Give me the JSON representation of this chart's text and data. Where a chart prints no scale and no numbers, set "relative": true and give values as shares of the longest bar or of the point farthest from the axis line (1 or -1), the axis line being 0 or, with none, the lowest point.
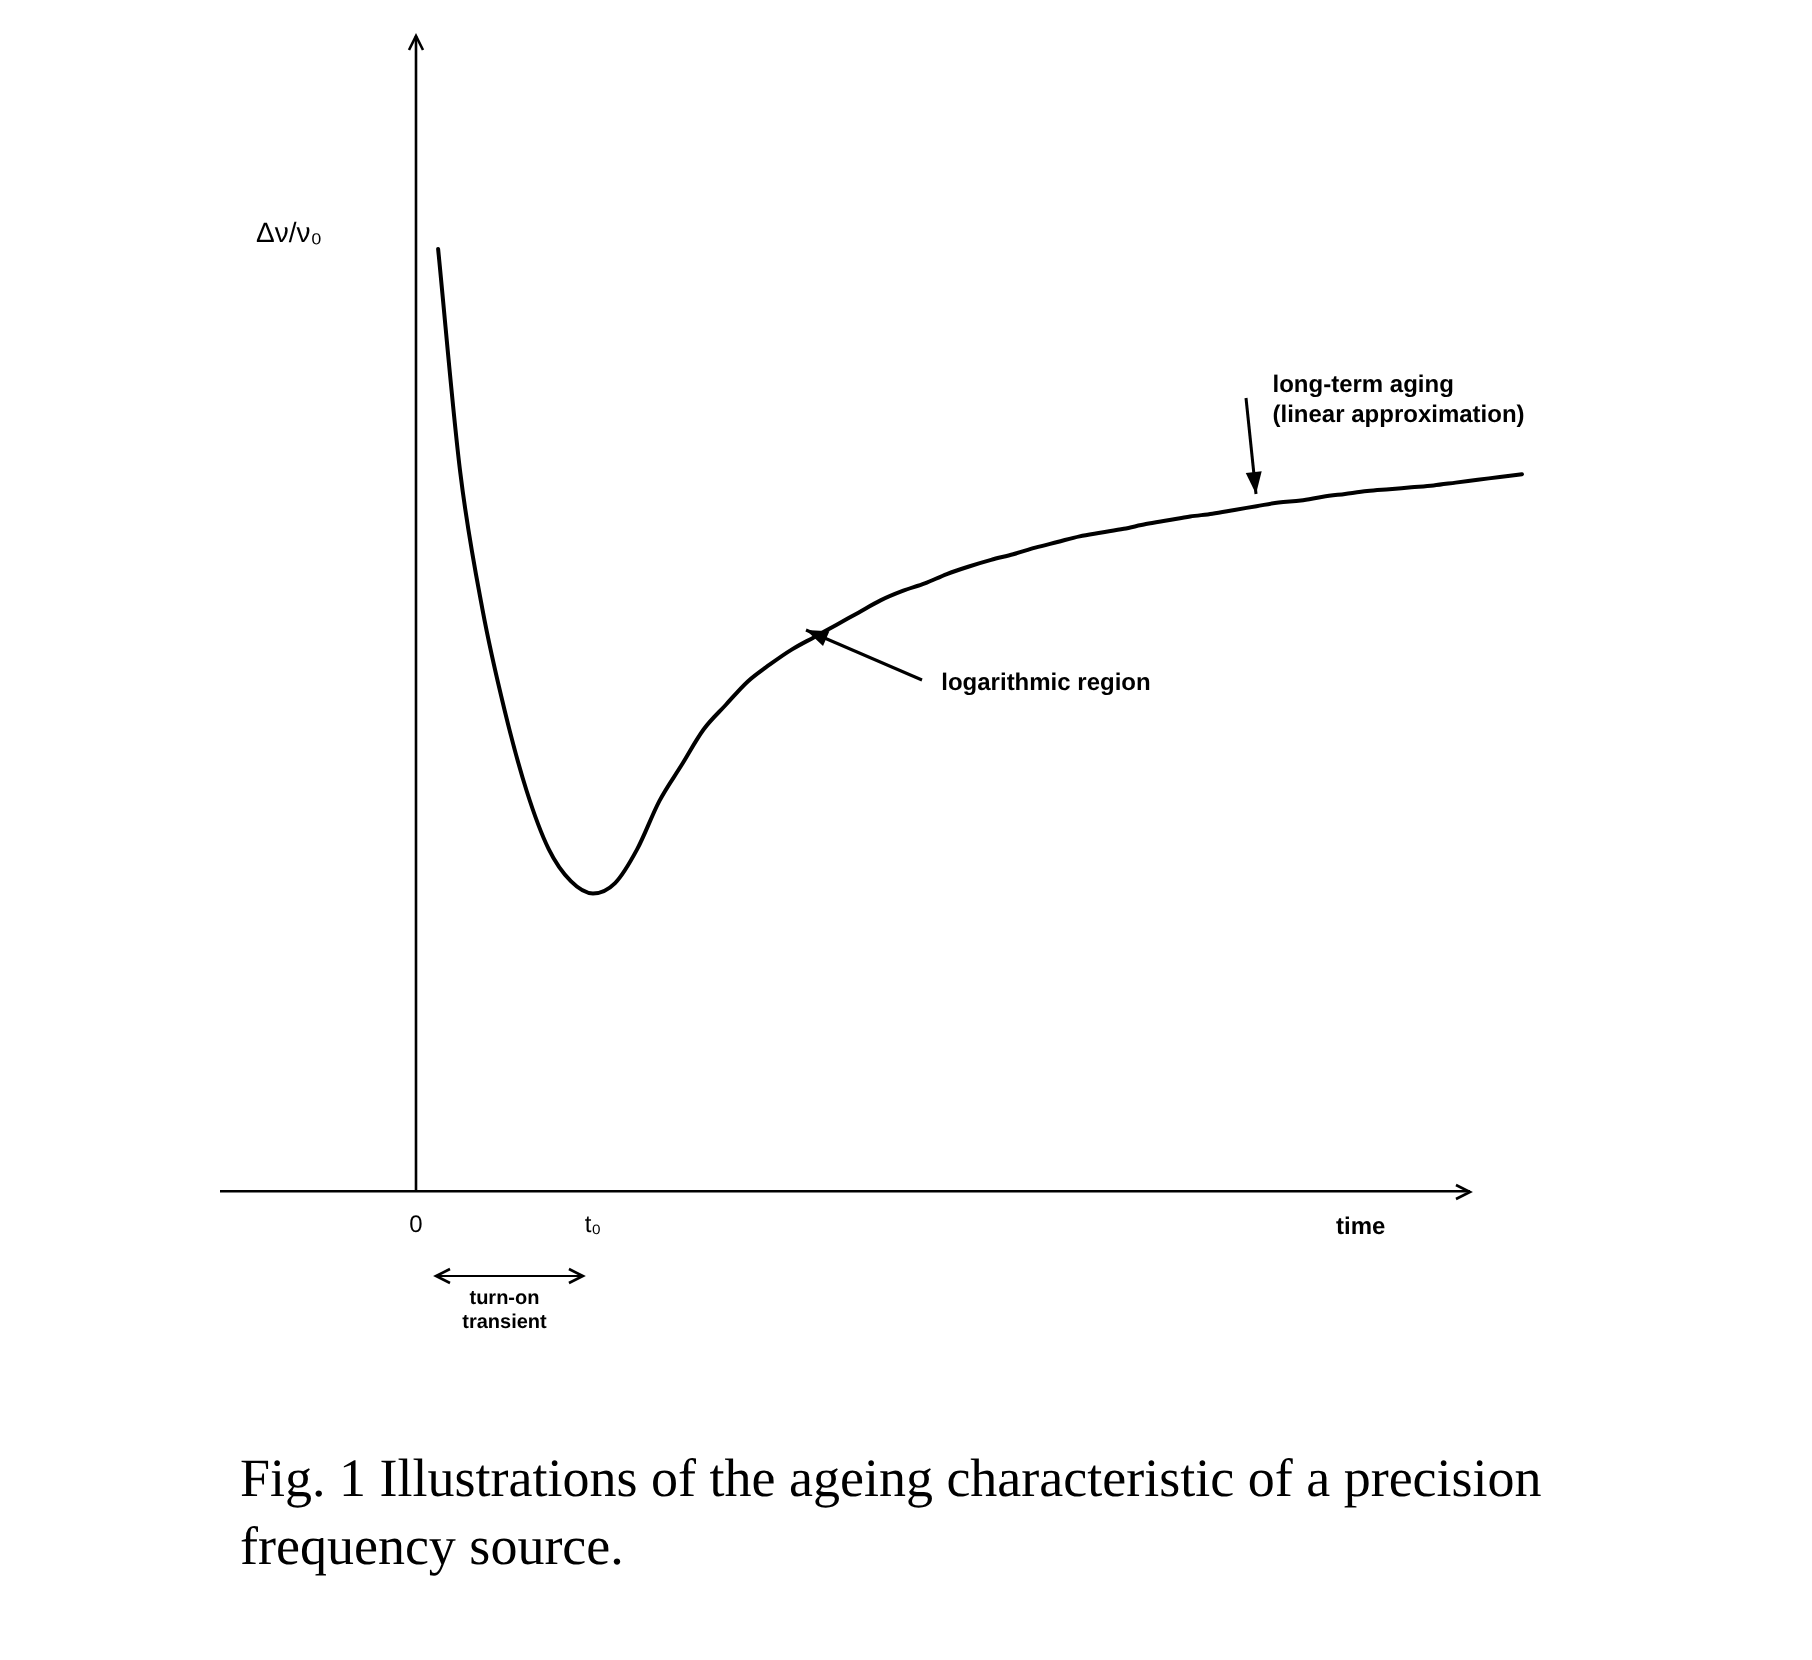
{
  "chart_data": {
    "type": "line",
    "relative": true,
    "title": "Fig. 1  Illustrations of the ageing characteristic of a precision frequency source.",
    "xlabel": "time",
    "ylabel": "Δν/ν₀",
    "categories": [
      "0",
      null,
      null,
      null,
      null,
      null,
      null,
      null,
      "t₀",
      null,
      null,
      null,
      null,
      null,
      null,
      null,
      null,
      null,
      null,
      null,
      null,
      null,
      null,
      null,
      null,
      null,
      null,
      null,
      null,
      null,
      null,
      null,
      null,
      null,
      null,
      null,
      null,
      null,
      null,
      null,
      null,
      null,
      null,
      null,
      null,
      null,
      null,
      null,
      null,
      null,
      null
    ],
    "legend": false,
    "marker": "none",
    "line_style": "solid",
    "series": [
      {
        "color": "#000000",
        "values": [
          null,
          1,
          0.763,
          0.618,
          0.511,
          0.425,
          0.363,
          0.329,
          0.316,
          0.327,
          0.363,
          0.414,
          0.452,
          0.49,
          0.516,
          0.541,
          0.559,
          0.575,
          0.588,
          0.601,
          0.614,
          0.627,
          0.637,
          0.645,
          0.655,
          0.663,
          0.67,
          0.676,
          0.683,
          0.689,
          0.695,
          0.699,
          0.703,
          0.708,
          0.712,
          0.716,
          0.719,
          0.723,
          0.727,
          0.731,
          0.733,
          0.737,
          0.74,
          0.743,
          0.745,
          0.747,
          0.749,
          0.752,
          0.755,
          0.758,
          0.761
        ]
      }
    ],
    "annotations": [
      "long-term aging\n(linear approximation)",
      "logarithmic region",
      "turn-on transient"
    ]
  }
}
